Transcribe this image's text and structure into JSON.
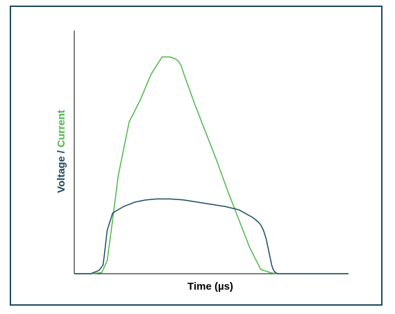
{
  "chart_data": {
    "type": "line",
    "xlabel": "Time (µs)",
    "ylabel_parts": [
      {
        "text": "Voltage / ",
        "color": "#1b4a5e"
      },
      {
        "text": "Current",
        "color": "#4cb748"
      }
    ],
    "xlim": [
      0,
      100
    ],
    "ylim": [
      0,
      100
    ],
    "grid": false,
    "series": [
      {
        "key": "current",
        "color": "#4cb748",
        "x": [
          0,
          6,
          10,
          12,
          14,
          16,
          20,
          24,
          28,
          32,
          35,
          37,
          38,
          39,
          40,
          42,
          44,
          48,
          52,
          56,
          60,
          64,
          68,
          72,
          75,
          76,
          78,
          80,
          85,
          100
        ],
        "y": [
          0,
          0,
          0.5,
          6,
          25,
          45,
          70,
          80,
          92,
          100,
          100,
          99,
          98,
          96,
          92,
          85,
          78,
          65,
          52,
          38,
          25,
          12,
          2,
          0.3,
          0,
          0,
          0,
          0,
          0,
          0
        ]
      },
      {
        "key": "voltage",
        "color": "#1b4a5e",
        "x": [
          0,
          6,
          9,
          10.5,
          11,
          12,
          14,
          18,
          22,
          26,
          30,
          35,
          40,
          45,
          50,
          55,
          60,
          65,
          67,
          68,
          69,
          70,
          71,
          72,
          72.5,
          73,
          74,
          75,
          76,
          100
        ],
        "y": [
          0,
          0,
          1.5,
          4,
          9,
          20,
          28,
          31,
          33,
          34,
          34.5,
          34.5,
          34,
          33,
          32,
          31,
          29.5,
          26,
          24,
          22.5,
          20,
          16,
          10,
          4,
          2,
          1,
          0,
          0,
          0,
          0
        ]
      }
    ]
  }
}
